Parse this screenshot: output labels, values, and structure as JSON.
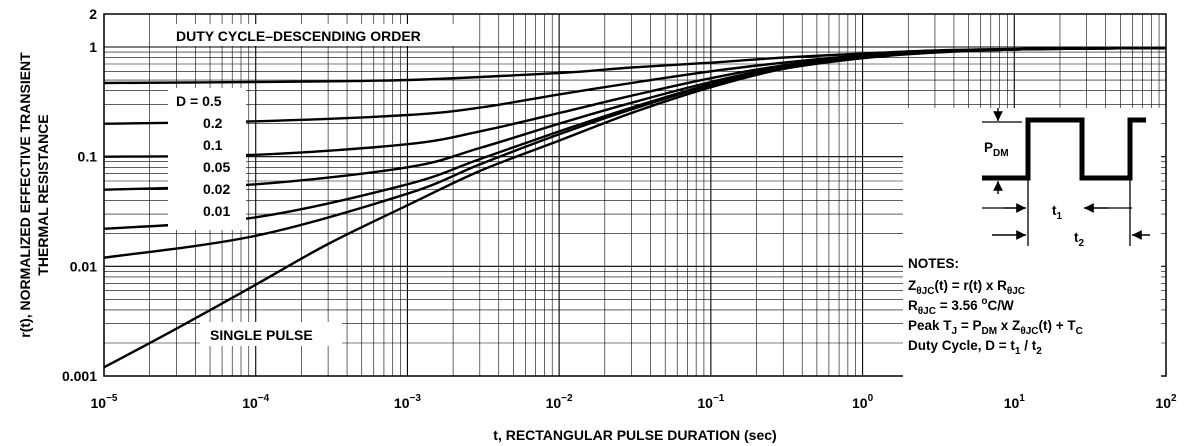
{
  "chart_data": {
    "type": "line",
    "xlabel": "t, RECTANGULAR PULSE DURATION (sec)",
    "ylabel_line1": "r(t), NORMALIZED EFFECTIVE TRANSIENT",
    "ylabel_line2": "THERMAL RESISTANCE",
    "x_scale": "log",
    "y_scale": "log",
    "xlim": [
      1e-05,
      100
    ],
    "ylim": [
      0.001,
      2
    ],
    "grid": true,
    "x_ticks": [
      {
        "v": 1e-05,
        "base": "10",
        "exp": "−5"
      },
      {
        "v": 0.0001,
        "base": "10",
        "exp": "−4"
      },
      {
        "v": 0.001,
        "base": "10",
        "exp": "−3"
      },
      {
        "v": 0.01,
        "base": "10",
        "exp": "−2"
      },
      {
        "v": 0.1,
        "base": "10",
        "exp": "−1"
      },
      {
        "v": 1,
        "base": "10",
        "exp": "0"
      },
      {
        "v": 10,
        "base": "10",
        "exp": "1"
      },
      {
        "v": 100,
        "base": "10",
        "exp": "2"
      }
    ],
    "y_ticks": [
      {
        "v": 2,
        "label": "2"
      },
      {
        "v": 1,
        "label": "1"
      },
      {
        "v": 0.1,
        "label": "0.1"
      },
      {
        "v": 0.01,
        "label": "0.01"
      },
      {
        "v": 0.001,
        "label": "0.001"
      }
    ],
    "series": [
      {
        "name": "D = 0.5",
        "points": [
          [
            1e-05,
            0.47
          ],
          [
            0.0001,
            0.48
          ],
          [
            0.001,
            0.5
          ],
          [
            0.01,
            0.58
          ],
          [
            0.03,
            0.65
          ],
          [
            0.1,
            0.72
          ],
          [
            0.3,
            0.8
          ],
          [
            1,
            0.87
          ],
          [
            3,
            0.93
          ],
          [
            10,
            0.96
          ],
          [
            30,
            0.98
          ],
          [
            100,
            0.98
          ]
        ]
      },
      {
        "name": "0.2",
        "points": [
          [
            1e-05,
            0.2
          ],
          [
            0.0001,
            0.21
          ],
          [
            0.001,
            0.24
          ],
          [
            0.003,
            0.28
          ],
          [
            0.01,
            0.37
          ],
          [
            0.03,
            0.47
          ],
          [
            0.1,
            0.6
          ],
          [
            0.3,
            0.72
          ],
          [
            1,
            0.84
          ],
          [
            3,
            0.91
          ],
          [
            10,
            0.95
          ],
          [
            30,
            0.97
          ],
          [
            100,
            0.98
          ]
        ]
      },
      {
        "name": "0.1",
        "points": [
          [
            1e-05,
            0.1
          ],
          [
            0.0001,
            0.104
          ],
          [
            0.001,
            0.13
          ],
          [
            0.003,
            0.17
          ],
          [
            0.01,
            0.25
          ],
          [
            0.03,
            0.36
          ],
          [
            0.1,
            0.52
          ],
          [
            0.3,
            0.68
          ],
          [
            1,
            0.82
          ],
          [
            3,
            0.9
          ],
          [
            10,
            0.95
          ],
          [
            30,
            0.97
          ],
          [
            100,
            0.98
          ]
        ]
      },
      {
        "name": "0.05",
        "points": [
          [
            1e-05,
            0.05
          ],
          [
            0.0001,
            0.056
          ],
          [
            0.001,
            0.08
          ],
          [
            0.003,
            0.12
          ],
          [
            0.01,
            0.2
          ],
          [
            0.03,
            0.31
          ],
          [
            0.1,
            0.48
          ],
          [
            0.3,
            0.66
          ],
          [
            1,
            0.81
          ],
          [
            3,
            0.9
          ],
          [
            10,
            0.95
          ],
          [
            30,
            0.97
          ],
          [
            100,
            0.98
          ]
        ]
      },
      {
        "name": "0.02",
        "points": [
          [
            1e-05,
            0.022
          ],
          [
            0.0001,
            0.028
          ],
          [
            0.001,
            0.056
          ],
          [
            0.003,
            0.095
          ],
          [
            0.01,
            0.17
          ],
          [
            0.03,
            0.28
          ],
          [
            0.1,
            0.46
          ],
          [
            0.3,
            0.65
          ],
          [
            1,
            0.8
          ],
          [
            3,
            0.9
          ],
          [
            10,
            0.95
          ],
          [
            30,
            0.97
          ],
          [
            100,
            0.98
          ]
        ]
      },
      {
        "name": "0.01",
        "points": [
          [
            1e-05,
            0.012
          ],
          [
            0.0001,
            0.019
          ],
          [
            0.001,
            0.046
          ],
          [
            0.003,
            0.085
          ],
          [
            0.01,
            0.16
          ],
          [
            0.03,
            0.27
          ],
          [
            0.1,
            0.45
          ],
          [
            0.3,
            0.64
          ],
          [
            1,
            0.8
          ],
          [
            3,
            0.9
          ],
          [
            10,
            0.95
          ],
          [
            30,
            0.97
          ],
          [
            100,
            0.98
          ]
        ]
      },
      {
        "name": "SINGLE PULSE",
        "points": [
          [
            1e-05,
            0.0012
          ],
          [
            3e-05,
            0.0027
          ],
          [
            0.0001,
            0.0068
          ],
          [
            0.0003,
            0.016
          ],
          [
            0.001,
            0.036
          ],
          [
            0.003,
            0.074
          ],
          [
            0.01,
            0.14
          ],
          [
            0.03,
            0.25
          ],
          [
            0.1,
            0.43
          ],
          [
            0.3,
            0.63
          ],
          [
            1,
            0.79
          ],
          [
            3,
            0.89
          ],
          [
            10,
            0.95
          ],
          [
            30,
            0.97
          ],
          [
            100,
            0.98
          ]
        ]
      }
    ],
    "annotations": {
      "duty_title": "DUTY CYCLE–DESCENDING ORDER",
      "single_pulse": "SINGLE PULSE",
      "legend_labels": [
        "D = 0.5",
        "0.2",
        "0.1",
        "0.05",
        "0.02",
        "0.01"
      ],
      "inset": {
        "p_base": "P",
        "p_sub": "DM",
        "t1_base": "t",
        "t1_sub": "1",
        "t2_base": "t",
        "t2_sub": "2"
      },
      "notes": {
        "title": "NOTES:",
        "l1": [
          {
            "t": "Z"
          },
          {
            "t": "θJC",
            "sub": true
          },
          {
            "t": "(t) = r(t) x R"
          },
          {
            "t": "θJC",
            "sub": true
          }
        ],
        "l2": [
          {
            "t": "R"
          },
          {
            "t": "θJC",
            "sub": true
          },
          {
            "t": " = 3.56  "
          },
          {
            "t": "o",
            "sup": true
          },
          {
            "t": "C/W"
          }
        ],
        "l3": [
          {
            "t": "Peak T"
          },
          {
            "t": "J",
            "sub": true
          },
          {
            "t": " = P"
          },
          {
            "t": "DM",
            "sub": true
          },
          {
            "t": " x Z"
          },
          {
            "t": "θJC",
            "sub": true
          },
          {
            "t": "(t) + T"
          },
          {
            "t": "C",
            "sub": true
          }
        ],
        "l4": [
          {
            "t": "Duty Cycle, D = t"
          },
          {
            "t": "1",
            "sub": true
          },
          {
            "t": " / t"
          },
          {
            "t": "2",
            "sub": true
          }
        ]
      }
    }
  }
}
